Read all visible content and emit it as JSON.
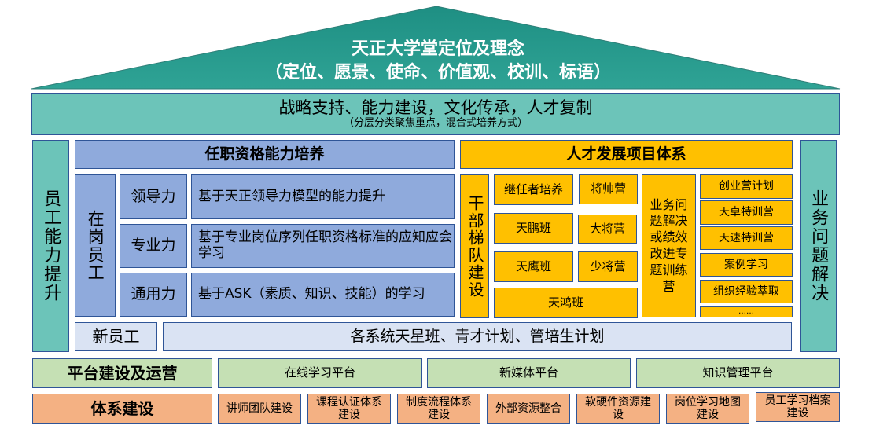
{
  "roof": {
    "title": "天正大学堂定位及理念",
    "subtitle": "（定位、愿景、使命、价值观、校训、标语）"
  },
  "strategy": {
    "title": "战略支持、能力建设，文化传承，人才复制",
    "subtitle": "（分层分类聚焦重点，混合式培养方式）"
  },
  "left_pillar": "员工能力提升",
  "right_pillar": "业务问题解决",
  "qualification": {
    "header": "任职资格能力培养",
    "group": "在岗员工",
    "rows": [
      {
        "label": "领导力",
        "desc": "基于天正领导力模型的能力提升"
      },
      {
        "label": "专业力",
        "desc": "基于专业岗位序列任职资格标准的应知应会学习"
      },
      {
        "label": "通用力",
        "desc": "基于ASK（素质、知识、技能）的学习"
      }
    ],
    "new_staff": "新员工",
    "new_staff_desc": "各系统天星班、青才计划、管培生计划"
  },
  "talent": {
    "header": "人才发展项目体系",
    "cadre": "干部梯队建设",
    "classes": [
      "继任者培养",
      "将帅营",
      "天鹏班",
      "大将营",
      "天鹰班",
      "少将营",
      "天鸿班"
    ],
    "business": "业务问题解决或绩效改进专题训练营",
    "camps": [
      "创业营计划",
      "天卓特训营",
      "天速特训营",
      "案例学习",
      "组织经验萃取",
      "……"
    ]
  },
  "platform": {
    "label": "平台建设及运营",
    "items": [
      "在线学习平台",
      "新媒体平台",
      "知识管理平台"
    ]
  },
  "system": {
    "label": "体系建设",
    "items": [
      "讲师团队建设",
      "课程认证体系建设",
      "制度流程体系建设",
      "外部资源整合",
      "软硬件资源建设",
      "岗位学习地图建设",
      "员工学习档案建设"
    ]
  },
  "colors": {
    "teal": "#6cc4b9",
    "blue": "#8faadc",
    "yellow": "#ffc000",
    "light_blue": "#dae3f3",
    "green": "#c5e0b4",
    "orange": "#f4b183",
    "border": "#2f5597"
  }
}
